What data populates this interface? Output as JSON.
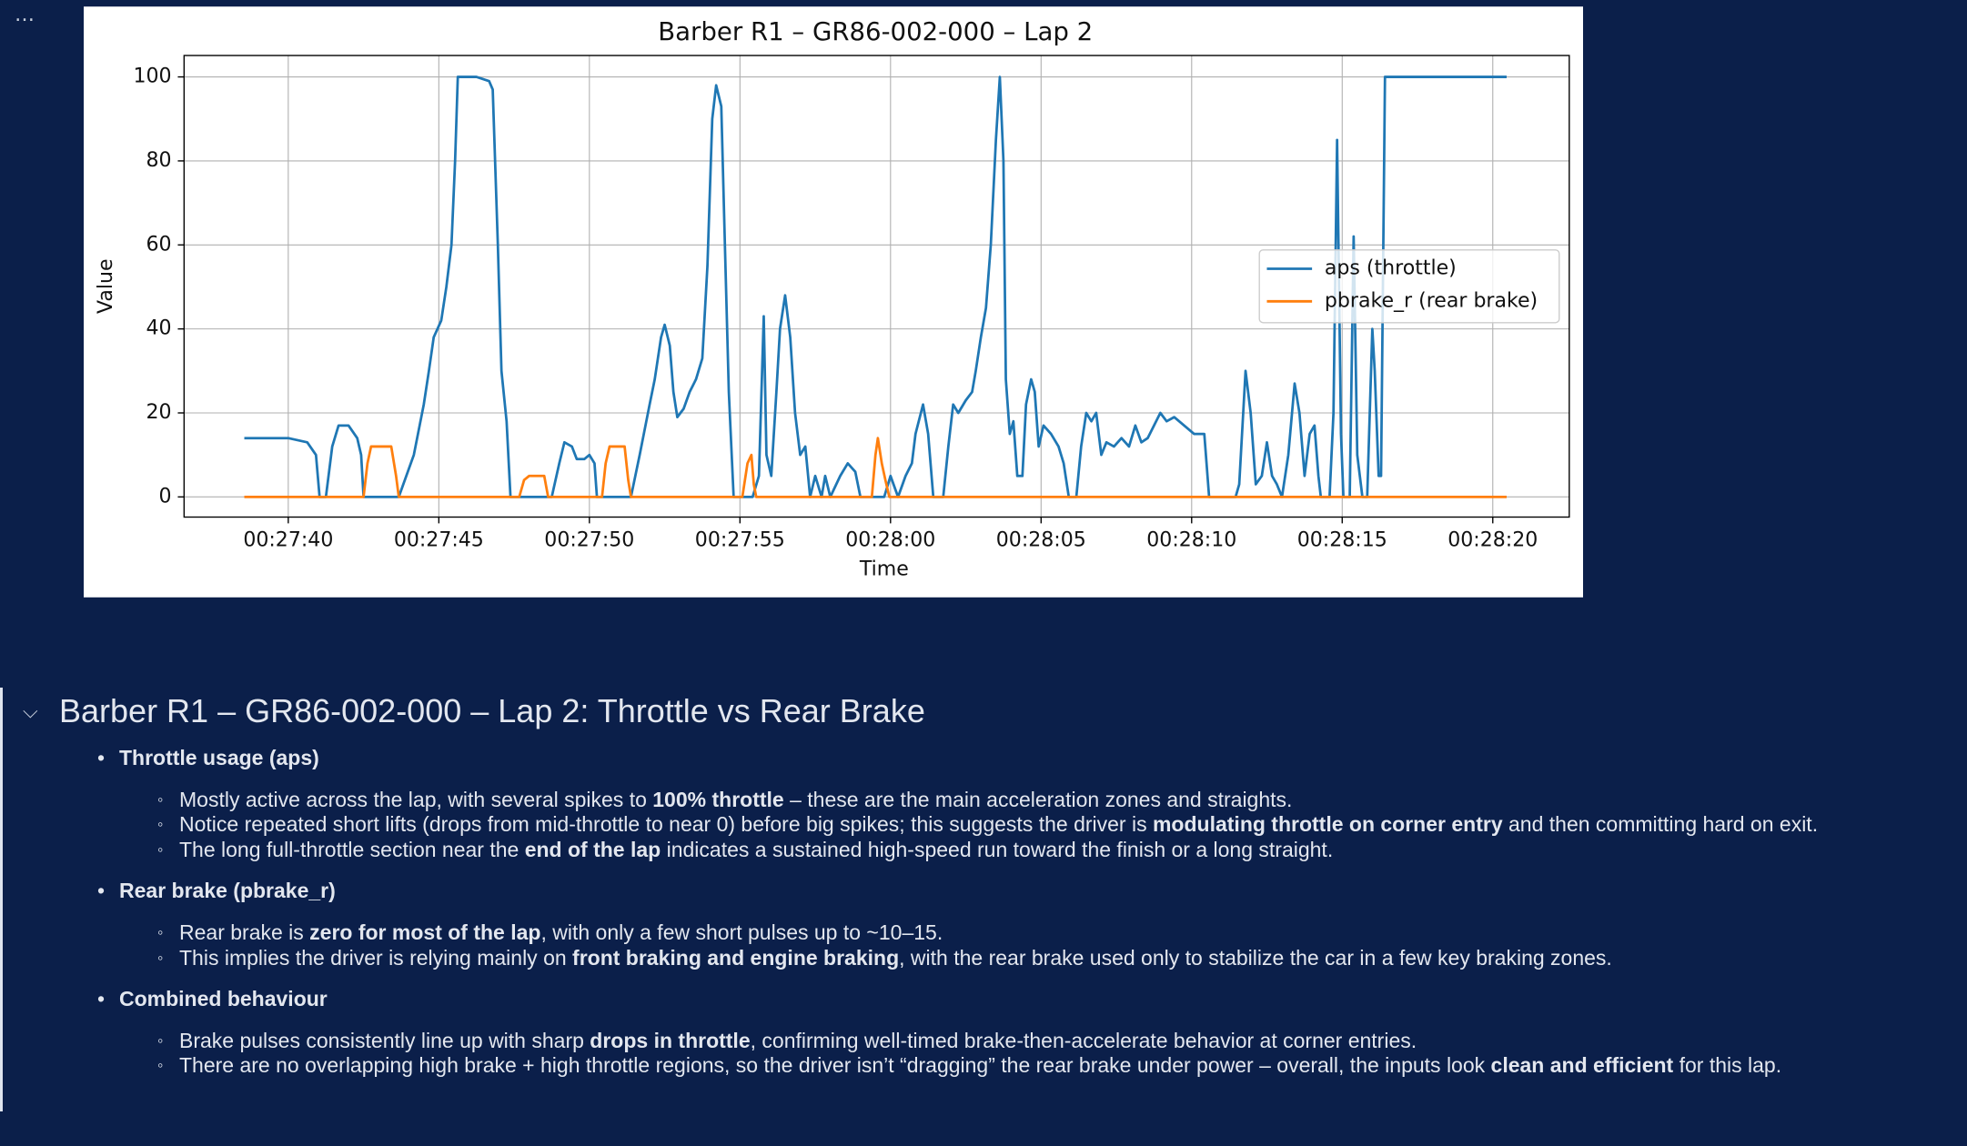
{
  "menu": "…",
  "chart_data": {
    "type": "line",
    "title": "Barber R1 – GR86-002-000 – Lap 2",
    "xlabel": "Time",
    "ylabel": "Value",
    "xlim": [
      1656.54,
      1702.54
    ],
    "ylim": [
      -4.8,
      105.1
    ],
    "xticks": [
      {
        "value": 1660,
        "label": "00:27:40"
      },
      {
        "value": 1665,
        "label": "00:27:45"
      },
      {
        "value": 1670,
        "label": "00:27:50"
      },
      {
        "value": 1675,
        "label": "00:27:55"
      },
      {
        "value": 1680,
        "label": "00:28:00"
      },
      {
        "value": 1685,
        "label": "00:28:05"
      },
      {
        "value": 1690,
        "label": "00:28:10"
      },
      {
        "value": 1695,
        "label": "00:28:15"
      },
      {
        "value": 1700,
        "label": "00:28:20"
      }
    ],
    "yticks": [
      0,
      20,
      40,
      60,
      80,
      100
    ],
    "grid": true,
    "legend": "center right",
    "series": [
      {
        "name": "aps (throttle)",
        "color": "#1f77b4",
        "x": [
          1658.54,
          1660,
          1660.63,
          1660.92,
          1661.04,
          1661.25,
          1661.46,
          1661.67,
          1662,
          1662.29,
          1662.42,
          1662.5,
          1663.67,
          1664.17,
          1664.5,
          1664.67,
          1664.83,
          1665.08,
          1665.25,
          1665.42,
          1665.54,
          1665.63,
          1666.25,
          1666.67,
          1666.79,
          1666.96,
          1667.08,
          1667.25,
          1667.38,
          1668.75,
          1669,
          1669.17,
          1669.42,
          1669.58,
          1669.83,
          1670,
          1670.17,
          1670.25,
          1671.38,
          1671.67,
          1672,
          1672.17,
          1672.38,
          1672.5,
          1672.67,
          1672.79,
          1672.92,
          1673.13,
          1673.33,
          1673.54,
          1673.75,
          1673.92,
          1674.08,
          1674.21,
          1674.38,
          1674.5,
          1674.63,
          1674.79,
          1675.42,
          1675.63,
          1675.79,
          1675.88,
          1676.04,
          1676.21,
          1676.33,
          1676.5,
          1676.67,
          1676.83,
          1677,
          1677.17,
          1677.33,
          1677.5,
          1677.71,
          1677.83,
          1678,
          1678.33,
          1678.58,
          1678.83,
          1679,
          1679.79,
          1680,
          1680.25,
          1680.5,
          1680.71,
          1680.83,
          1681.08,
          1681.25,
          1681.42,
          1681.75,
          1681.92,
          1682.08,
          1682.25,
          1682.5,
          1682.71,
          1682.83,
          1683,
          1683.17,
          1683.33,
          1683.5,
          1683.63,
          1683.75,
          1683.83,
          1683.96,
          1684.08,
          1684.21,
          1684.38,
          1684.5,
          1684.67,
          1684.79,
          1684.92,
          1685.08,
          1685.33,
          1685.58,
          1685.75,
          1685.92,
          1686.17,
          1686.33,
          1686.5,
          1686.67,
          1686.83,
          1687,
          1687.17,
          1687.42,
          1687.67,
          1687.92,
          1688.13,
          1688.33,
          1688.54,
          1688.75,
          1688.96,
          1689.17,
          1689.42,
          1689.75,
          1690.08,
          1690.42,
          1690.58,
          1691.46,
          1691.58,
          1691.79,
          1691.96,
          1692.13,
          1692.33,
          1692.5,
          1692.67,
          1692.83,
          1693,
          1693.21,
          1693.42,
          1693.58,
          1693.75,
          1693.92,
          1694.08,
          1694.21,
          1694.29,
          1694.58,
          1694.71,
          1694.83,
          1694.96,
          1695.04,
          1695.25,
          1695.38,
          1695.5,
          1695.67,
          1695.83,
          1696,
          1696.08,
          1696.21,
          1696.29,
          1696.42,
          1700.46
        ],
        "values": [
          14,
          14,
          13,
          10,
          0,
          0,
          12,
          17,
          17,
          14,
          10,
          0,
          0,
          10,
          22,
          30,
          38,
          42,
          50,
          60,
          80,
          100,
          100,
          99,
          97,
          60,
          30,
          18,
          0,
          0,
          8,
          13,
          12,
          9,
          9,
          10,
          8,
          0,
          0,
          10,
          22,
          28,
          38,
          41,
          36,
          25,
          19,
          21,
          25,
          28,
          33,
          55,
          90,
          98,
          93,
          60,
          25,
          0,
          0,
          5,
          43,
          10,
          5,
          25,
          40,
          48,
          38,
          20,
          10,
          12,
          0,
          5,
          0,
          5,
          0,
          5,
          8,
          6,
          0,
          0,
          5,
          0,
          5,
          8,
          15,
          22,
          15,
          0,
          0,
          12,
          22,
          20,
          23,
          25,
          30,
          38,
          45,
          60,
          85,
          100,
          80,
          28,
          15,
          18,
          5,
          5,
          22,
          28,
          25,
          12,
          17,
          15,
          12,
          8,
          0,
          0,
          12,
          20,
          18,
          20,
          10,
          13,
          12,
          14,
          12,
          17,
          13,
          14,
          17,
          20,
          18,
          19,
          17,
          15,
          15,
          0,
          0,
          3,
          30,
          20,
          3,
          5,
          13,
          5,
          3,
          0,
          10,
          27,
          20,
          5,
          15,
          17,
          5,
          0,
          0,
          20,
          85,
          15,
          0,
          0,
          62,
          10,
          0,
          0,
          40,
          30,
          5,
          5,
          100,
          100
        ]
      },
      {
        "name": "pbrake_r (rear brake)",
        "color": "#ff7f0e",
        "x": [
          1658.54,
          1662.5,
          1662.63,
          1662.75,
          1663.42,
          1663.58,
          1663.67,
          1667.67,
          1667.83,
          1668,
          1668.5,
          1668.63,
          1670.42,
          1670.54,
          1670.67,
          1671.17,
          1671.29,
          1671.38,
          1675.08,
          1675.25,
          1675.38,
          1675.46,
          1675.54,
          1679.38,
          1679.5,
          1679.58,
          1679.71,
          1679.83,
          1679.96,
          1700.46
        ],
        "values": [
          0,
          0,
          8,
          12,
          12,
          5,
          0,
          0,
          4,
          5,
          5,
          0,
          0,
          8,
          12,
          12,
          4,
          0,
          0,
          8,
          10,
          3,
          0,
          0,
          10,
          14,
          8,
          4,
          0,
          0
        ]
      }
    ]
  },
  "notes": {
    "heading": "Barber R1 – GR86-002-000 – Lap 2: Throttle vs Rear Brake",
    "sections": [
      {
        "title": "Throttle usage (aps)",
        "items": [
          [
            "Mostly active across the lap, with several spikes to ",
            "100% throttle",
            " – these are the main acceleration zones and straights."
          ],
          [
            "Notice repeated short lifts (drops from mid-throttle to near 0) before big spikes; this suggests the driver is ",
            "modulating throttle on corner entry",
            " and then committing hard on exit."
          ],
          [
            "The long full-throttle section near the ",
            "end of the lap",
            " indicates a sustained high-speed run toward the finish or a long straight."
          ]
        ]
      },
      {
        "title": "Rear brake (pbrake_r)",
        "items": [
          [
            "Rear brake is ",
            "zero for most of the lap",
            ", with only a few short pulses up to ~10–15."
          ],
          [
            "This implies the driver is relying mainly on ",
            "front braking and engine braking",
            ", with the rear brake used only to stabilize the car in a few key braking zones."
          ]
        ]
      },
      {
        "title": "Combined behaviour",
        "items": [
          [
            "Brake pulses consistently line up with sharp ",
            "drops in throttle",
            ", confirming well-timed brake-then-accelerate behavior at corner entries."
          ],
          [
            "There are no overlapping high brake + high throttle regions, so the driver isn’t “dragging” the rear brake under power – overall, the inputs look ",
            "clean and efficient",
            " for this lap."
          ]
        ]
      }
    ]
  }
}
